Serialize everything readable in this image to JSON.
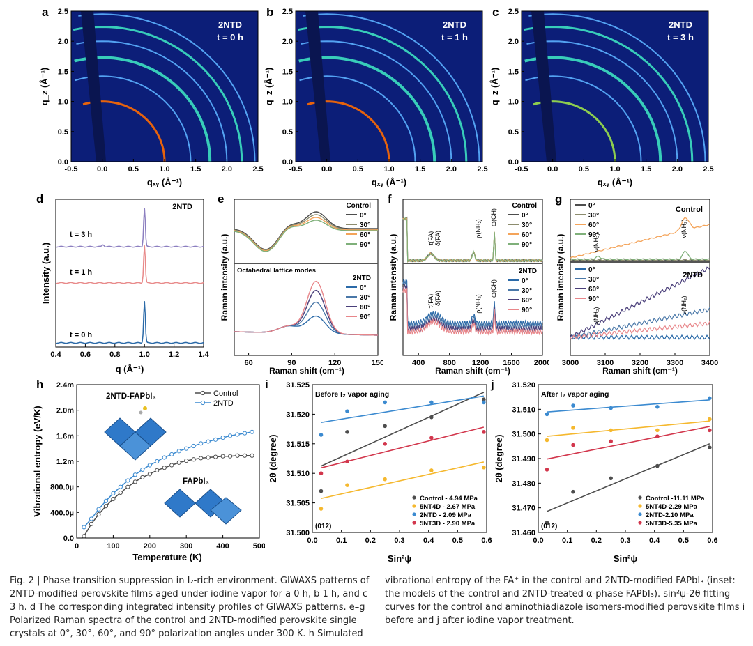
{
  "panels": {
    "a": {
      "letter": "a",
      "tag": "2NTD",
      "time": "t = 0 h"
    },
    "b": {
      "letter": "b",
      "tag": "2NTD",
      "time": "t = 1 h"
    },
    "c": {
      "letter": "c",
      "tag": "2NTD",
      "time": "t = 3 h"
    },
    "d": {
      "letter": "d",
      "tag": "2NTD",
      "times": [
        "t = 3 h",
        "t = 1 h",
        "t = 0 h"
      ],
      "xlabel": "q (Å⁻¹)",
      "ylabel": "Intensity (a.u.)"
    },
    "e": {
      "letter": "e",
      "ylabel": "Raman intensity (a.u.)",
      "xlabel": "Raman shift (cm⁻¹)",
      "annotation": "Octahedral lattice modes"
    },
    "f": {
      "letter": "f",
      "ylabel": "Raman intensity (a.u.)",
      "xlabel": "Raman shift (cm⁻¹)",
      "peaks": [
        "τ(FA)",
        "δ(FA)",
        "ρ(NH₂)",
        "ω(CH)"
      ]
    },
    "g": {
      "letter": "g",
      "ylabel": "Raman intensity (a.u.)",
      "xlabel": "Raman shift (cm⁻¹)",
      "peaks": [
        "ν(NH₂)",
        "ν(NH₂)"
      ]
    },
    "h": {
      "letter": "h",
      "inset_top": "2NTD-FAPbI₃",
      "inset_bottom": "FAPbI₃",
      "xlabel": "Temperature (K)",
      "ylabel": "Vibrational entropy (eV/K)"
    },
    "i": {
      "letter": "i",
      "title": "Before I₂ vapor aging",
      "tag": "(012)",
      "xlabel": "Sin²ψ",
      "ylabel": "2θ (degree)"
    },
    "j": {
      "letter": "j",
      "title": "After I₂ vapor aging",
      "tag": "(012)",
      "xlabel": "Sin²ψ",
      "ylabel": "2θ (degree)"
    }
  },
  "giwaxs_axes": {
    "xlabel": "qₓᵧ (Å⁻¹)",
    "ylabel": "q_z (Å⁻¹)",
    "xticks": [
      "-0.5",
      "0.0",
      "0.5",
      "1.0",
      "1.5",
      "2.0",
      "2.5"
    ],
    "yticks": [
      "0.0",
      "0.5",
      "1.0",
      "1.5",
      "2.0",
      "2.5"
    ]
  },
  "legends": {
    "e_control": {
      "title": "Control",
      "items": [
        "0°",
        "30°",
        "60°",
        "90°"
      ]
    },
    "e_2ntd": {
      "title": "2NTD",
      "items": [
        "0°",
        "30°",
        "60°",
        "90°"
      ]
    },
    "h": {
      "items": [
        "Control",
        "2NTD"
      ]
    },
    "i": {
      "items": [
        "Control - 4.94 MPa",
        "5NT4D - 2.67 MPa",
        "2NTD - 2.09 MPa",
        "5NT3D - 2.90 MPa"
      ]
    },
    "j": {
      "items": [
        "Control -11.11 MPa",
        "5NT4D-2.29 MPa",
        "2NTD-2.10 MPa",
        "5NT3D-5.35 MPa"
      ]
    }
  },
  "colors": {
    "control": "#4d4d4d",
    "s30": "#8c8c6e",
    "s60": "#f4a45a",
    "s90": "#7fb07a",
    "b0": "#2b6aa8",
    "b30": "#4a78a8",
    "b60": "#4a3f7a",
    "b90": "#e8868a",
    "orange": "#f5b82e",
    "blue": "#3b8ad0",
    "red": "#d2364c"
  },
  "chart_data": [
    {
      "type": "line",
      "panel": "d",
      "x": [
        0.4,
        0.6,
        0.8,
        1.0,
        1.2,
        1.4
      ],
      "series": [
        {
          "name": "t = 3 h"
        },
        {
          "name": "t = 1 h"
        },
        {
          "name": "t = 0 h"
        }
      ],
      "xlim": [
        0.4,
        1.4
      ],
      "xticks": [
        "0.4",
        "0.6",
        "0.8",
        "1.0",
        "1.2",
        "1.4"
      ]
    },
    {
      "type": "line",
      "panel": "e",
      "xlim": [
        50,
        150
      ],
      "xticks": [
        "60",
        "90",
        "120",
        "150"
      ]
    },
    {
      "type": "line",
      "panel": "f",
      "xlim": [
        200,
        2000
      ],
      "xticks": [
        "400",
        "800",
        "1200",
        "1600",
        "2000"
      ]
    },
    {
      "type": "line",
      "panel": "g",
      "xlim": [
        3000,
        3400
      ],
      "xticks": [
        "3000",
        "3100",
        "3200",
        "3300",
        "3400"
      ]
    },
    {
      "type": "line",
      "panel": "h",
      "xlim": [
        0,
        500
      ],
      "ylim": [
        0,
        0.0024
      ],
      "xticks": [
        "0",
        "100",
        "200",
        "300",
        "400",
        "500"
      ],
      "yticks": [
        "0.0",
        "400.0µ",
        "800.0µ",
        "1.2m",
        "1.6m",
        "2.0m",
        "2.4m"
      ],
      "series": [
        {
          "name": "Control",
          "x": [
            20,
            40,
            60,
            80,
            100,
            120,
            140,
            160,
            180,
            200,
            220,
            240,
            260,
            280,
            300,
            320,
            340,
            360,
            380,
            400,
            420,
            440,
            460,
            480
          ],
          "y": [
            3e-05,
            0.00022,
            0.00037,
            0.0005,
            0.00061,
            0.00071,
            0.0008,
            0.00088,
            0.00095,
            0.001,
            0.00106,
            0.0011,
            0.00114,
            0.00118,
            0.00121,
            0.00123,
            0.00125,
            0.00126,
            0.00127,
            0.00128,
            0.00128,
            0.00129,
            0.00129,
            0.00129
          ]
        },
        {
          "name": "2NTD",
          "x": [
            20,
            40,
            60,
            80,
            100,
            120,
            140,
            160,
            180,
            200,
            220,
            240,
            260,
            280,
            300,
            320,
            340,
            360,
            380,
            400,
            420,
            440,
            460,
            480
          ],
          "y": [
            0.00017,
            0.0003,
            0.00045,
            0.00058,
            0.0007,
            0.0008,
            0.0009,
            0.00099,
            0.00107,
            0.00114,
            0.0012,
            0.00126,
            0.00131,
            0.00136,
            0.0014,
            0.00144,
            0.00148,
            0.00151,
            0.00154,
            0.00157,
            0.0016,
            0.00162,
            0.00164,
            0.00166
          ]
        }
      ]
    },
    {
      "type": "scatter",
      "panel": "i",
      "xlim": [
        0,
        0.6
      ],
      "ylim": [
        31.5,
        31.525
      ],
      "xticks": [
        "0.0",
        "0.1",
        "0.2",
        "0.3",
        "0.4",
        "0.5",
        "0.6"
      ],
      "yticks": [
        "31.500",
        "31.505",
        "31.510",
        "31.515",
        "31.520",
        "31.525"
      ],
      "series": [
        {
          "name": "Control - 4.94 MPa",
          "x": [
            0.03,
            0.12,
            0.25,
            0.41,
            0.59
          ],
          "y": [
            31.507,
            31.517,
            31.518,
            31.5195,
            31.5225
          ]
        },
        {
          "name": "5NT4D - 2.67 MPa",
          "x": [
            0.03,
            0.12,
            0.25,
            0.41,
            0.59
          ],
          "y": [
            31.504,
            31.508,
            31.509,
            31.5105,
            31.511
          ]
        },
        {
          "name": "2NTD - 2.09 MPa",
          "x": [
            0.03,
            0.12,
            0.25,
            0.41,
            0.59
          ],
          "y": [
            31.5165,
            31.5205,
            31.522,
            31.522,
            31.522
          ]
        },
        {
          "name": "5NT3D - 2.90 MPa",
          "x": [
            0.03,
            0.12,
            0.25,
            0.41,
            0.59
          ],
          "y": [
            31.51,
            31.512,
            31.515,
            31.516,
            31.517
          ]
        }
      ]
    },
    {
      "type": "scatter",
      "panel": "j",
      "xlim": [
        0,
        0.6
      ],
      "ylim": [
        31.46,
        31.52
      ],
      "xticks": [
        "0.0",
        "0.1",
        "0.2",
        "0.3",
        "0.4",
        "0.5",
        "0.6"
      ],
      "yticks": [
        "31.460",
        "31.470",
        "31.480",
        "31.490",
        "31.500",
        "31.510",
        "31.520"
      ],
      "series": [
        {
          "name": "Control -11.11 MPa",
          "x": [
            0.03,
            0.12,
            0.25,
            0.41,
            0.59
          ],
          "y": [
            31.464,
            31.4765,
            31.482,
            31.487,
            31.4945
          ]
        },
        {
          "name": "5NT4D-2.29 MPa",
          "x": [
            0.03,
            0.12,
            0.25,
            0.41,
            0.59
          ],
          "y": [
            31.4975,
            31.5025,
            31.5015,
            31.5015,
            31.506
          ]
        },
        {
          "name": "2NTD-2.10 MPa",
          "x": [
            0.03,
            0.12,
            0.25,
            0.41,
            0.59
          ],
          "y": [
            31.508,
            31.5115,
            31.5105,
            31.511,
            31.5145
          ]
        },
        {
          "name": "5NT3D-5.35 MPa",
          "x": [
            0.03,
            0.12,
            0.25,
            0.41,
            0.59
          ],
          "y": [
            31.4855,
            31.4955,
            31.497,
            31.499,
            31.5015
          ]
        }
      ]
    }
  ],
  "caption": {
    "left": "Fig. 2 | Phase transition suppression in I₂-rich environment. GIWAXS patterns of 2NTD-modified perovskite films aged under iodine vapor for a 0 h, b 1 h, and c 3 h. d The corresponding integrated intensity profiles of GIWAXS patterns. e–g Polarized Raman spectra of the control and 2NTD-modified perovskite single crystals at 0°, 30°, 60°, and 90° polarization angles under 300 K. h Simulated",
    "right": "vibrational entropy of the FA⁺ in the control and 2NTD-modified FAPbI₃ (inset: the models of the control and 2NTD-treated α-phase FAPbI₃). sin²ψ-2θ fitting curves for the control and aminothiadiazole isomers-modified perovskite films i before and j after iodine vapor treatment."
  }
}
